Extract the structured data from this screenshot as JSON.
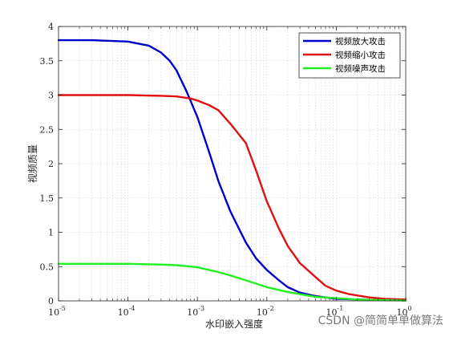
{
  "chart_data": {
    "type": "line",
    "xscale": "log",
    "xlim": [
      1e-05,
      1
    ],
    "ylim": [
      0,
      4
    ],
    "xlabel": "水印嵌入强度",
    "ylabel": "视频质量",
    "grid": "on",
    "legend_position": "top-right",
    "x_tick_values": [
      1e-05,
      0.0001,
      0.001,
      0.01,
      0.1,
      1
    ],
    "x_tick_labels": [
      {
        "base": "10",
        "exp": "-5"
      },
      {
        "base": "10",
        "exp": "-4"
      },
      {
        "base": "10",
        "exp": "-3"
      },
      {
        "base": "10",
        "exp": "-2"
      },
      {
        "base": "10",
        "exp": "-1"
      },
      {
        "base": "10",
        "exp": "0"
      }
    ],
    "y_ticks": [
      0,
      0.5,
      1,
      1.5,
      2,
      2.5,
      3,
      3.5,
      4
    ],
    "y_tick_labels": [
      "0",
      "0.5",
      "1",
      "1.5",
      "2",
      "2.5",
      "3",
      "3.5",
      "4"
    ],
    "series": [
      {
        "name": "视频放大攻击",
        "color": "#0000cc",
        "points": [
          [
            1e-05,
            3.8
          ],
          [
            3e-05,
            3.8
          ],
          [
            0.0001,
            3.78
          ],
          [
            0.0002,
            3.72
          ],
          [
            0.0003,
            3.62
          ],
          [
            0.0004,
            3.5
          ],
          [
            0.0005,
            3.36
          ],
          [
            0.0007,
            3.05
          ],
          [
            0.001,
            2.68
          ],
          [
            0.0015,
            2.15
          ],
          [
            0.002,
            1.75
          ],
          [
            0.003,
            1.3
          ],
          [
            0.005,
            0.85
          ],
          [
            0.007,
            0.62
          ],
          [
            0.01,
            0.45
          ],
          [
            0.015,
            0.3
          ],
          [
            0.02,
            0.2
          ],
          [
            0.03,
            0.12
          ],
          [
            0.05,
            0.07
          ],
          [
            0.1,
            0.03
          ],
          [
            0.3,
            0.015
          ],
          [
            1,
            0.01
          ]
        ]
      },
      {
        "name": "视频缩小攻击",
        "color": "#dd1111",
        "points": [
          [
            1e-05,
            3.0
          ],
          [
            0.0001,
            3.0
          ],
          [
            0.0003,
            2.99
          ],
          [
            0.0005,
            2.98
          ],
          [
            0.0008,
            2.95
          ],
          [
            0.001,
            2.92
          ],
          [
            0.0015,
            2.85
          ],
          [
            0.002,
            2.78
          ],
          [
            0.003,
            2.58
          ],
          [
            0.005,
            2.3
          ],
          [
            0.007,
            1.9
          ],
          [
            0.01,
            1.45
          ],
          [
            0.015,
            1.05
          ],
          [
            0.02,
            0.8
          ],
          [
            0.03,
            0.55
          ],
          [
            0.05,
            0.35
          ],
          [
            0.07,
            0.22
          ],
          [
            0.1,
            0.15
          ],
          [
            0.15,
            0.1
          ],
          [
            0.3,
            0.05
          ],
          [
            0.5,
            0.03
          ],
          [
            1,
            0.02
          ]
        ]
      },
      {
        "name": "视频噪声攻击",
        "color": "#22ee22",
        "points": [
          [
            1e-05,
            0.54
          ],
          [
            0.0001,
            0.54
          ],
          [
            0.0003,
            0.53
          ],
          [
            0.0005,
            0.52
          ],
          [
            0.001,
            0.49
          ],
          [
            0.002,
            0.42
          ],
          [
            0.003,
            0.37
          ],
          [
            0.005,
            0.3
          ],
          [
            0.01,
            0.2
          ],
          [
            0.02,
            0.13
          ],
          [
            0.05,
            0.06
          ],
          [
            0.1,
            0.04
          ],
          [
            0.2,
            0.02
          ],
          [
            0.5,
            0.01
          ],
          [
            1,
            0.005
          ]
        ]
      }
    ]
  },
  "watermark": {
    "text": "CSDN @简简单单做算法"
  }
}
